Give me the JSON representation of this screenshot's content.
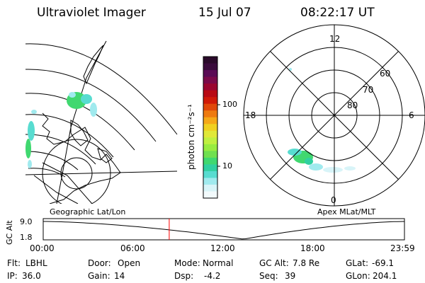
{
  "header": {
    "title": "Ultraviolet Imager",
    "date": "15 Jul 07",
    "time": "08:22:17 UT"
  },
  "colorbar": {
    "unit_label": "photon cm⁻²s⁻¹",
    "ticks": [
      "100",
      "10"
    ],
    "colors": [
      "#2a0a2a",
      "#3a0b3c",
      "#5a0b55",
      "#7a0a4a",
      "#9a0630",
      "#b80a14",
      "#d01a08",
      "#e0480a",
      "#ee7a10",
      "#f5a818",
      "#f0d020",
      "#e0e838",
      "#c0f040",
      "#98ec40",
      "#70e050",
      "#40d870",
      "#30d0a0",
      "#58dcd0",
      "#a0eaee",
      "#d8f4f8",
      "#f2fafc"
    ]
  },
  "left_map": {
    "subtitle": "Geographic Lat/Lon"
  },
  "right_map": {
    "subtitle": "Apex MLat/MLT",
    "mlt_labels": [
      "12",
      "18",
      "6",
      "0"
    ],
    "mlat_labels": [
      "60",
      "70",
      "80"
    ]
  },
  "altitude_plot": {
    "ylabel": "GC Alt",
    "yticks": [
      "9.0",
      "1.8"
    ],
    "xticks": [
      "00:00",
      "06:00",
      "12:00",
      "18:00",
      "23:59"
    ],
    "current_marker_hour": 8.37,
    "marker_color": "#ff0000"
  },
  "status": {
    "filter": {
      "label": "Flt:",
      "value": "LBHL"
    },
    "door": {
      "label": "Door:",
      "value": "Open"
    },
    "mode": {
      "label": "Mode:",
      "value": "Normal"
    },
    "gc_alt": {
      "label": "GC Alt:",
      "value": "7.8 Re"
    },
    "glat": {
      "label": "GLat:",
      "value": "-69.1"
    },
    "ip": {
      "label": "IP:",
      "value": "36.0"
    },
    "gain": {
      "label": "Gain:",
      "value": "14"
    },
    "dsp": {
      "label": "Dsp:",
      "value": "-4.2"
    },
    "seq": {
      "label": "Seq:",
      "value": "39"
    },
    "glon": {
      "label": "GLon:",
      "value": "204.1"
    }
  }
}
